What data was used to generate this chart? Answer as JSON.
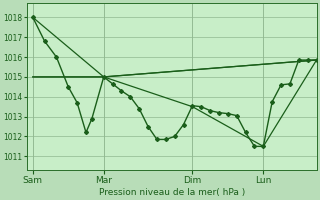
{
  "background_color": "#b8ddb8",
  "plot_bg_color": "#c8eec8",
  "grid_color": "#90b890",
  "line_color": "#1a5e1a",
  "marker_color": "#1a5e1a",
  "ylabel_vals": [
    1011,
    1012,
    1013,
    1014,
    1015,
    1016,
    1017,
    1018
  ],
  "ylim": [
    1010.3,
    1018.7
  ],
  "xlabel": "Pression niveau de la mer( hPa )",
  "xtick_labels": [
    "Sam",
    "Mar",
    "Dim",
    "Lun"
  ],
  "xtick_pos": [
    0,
    48,
    108,
    156
  ],
  "xlim": [
    -4,
    192
  ],
  "series_main": {
    "x": [
      0,
      8,
      16,
      24,
      30,
      36,
      40,
      48,
      54,
      60,
      66,
      72,
      78,
      84,
      90,
      96,
      102,
      108,
      114,
      120,
      126,
      132,
      138,
      144,
      150,
      156,
      162,
      168,
      174,
      180,
      186,
      192
    ],
    "y": [
      1018.0,
      1016.8,
      1016.0,
      1014.5,
      1013.7,
      1012.2,
      1012.9,
      1015.0,
      1014.65,
      1014.3,
      1014.0,
      1013.4,
      1012.5,
      1011.85,
      1011.85,
      1012.0,
      1012.6,
      1013.55,
      1013.5,
      1013.3,
      1013.2,
      1013.15,
      1013.05,
      1012.2,
      1011.5,
      1011.5,
      1013.75,
      1014.6,
      1014.65,
      1015.85,
      1015.85,
      1015.85
    ],
    "marker": "D",
    "markersize": 2.0,
    "linewidth": 1.0
  },
  "series_trend1": {
    "x": [
      0,
      48,
      192
    ],
    "y": [
      1018.0,
      1015.0,
      1015.85
    ],
    "linewidth": 0.9
  },
  "series_trend2": {
    "x": [
      0,
      8,
      48,
      192
    ],
    "y": [
      1015.0,
      1015.0,
      1015.0,
      1015.85
    ],
    "linewidth": 0.9
  },
  "series_trend3": {
    "x": [
      0,
      48,
      108,
      156,
      192
    ],
    "y": [
      1015.0,
      1015.0,
      1013.5,
      1011.5,
      1015.85
    ],
    "linewidth": 0.9
  }
}
